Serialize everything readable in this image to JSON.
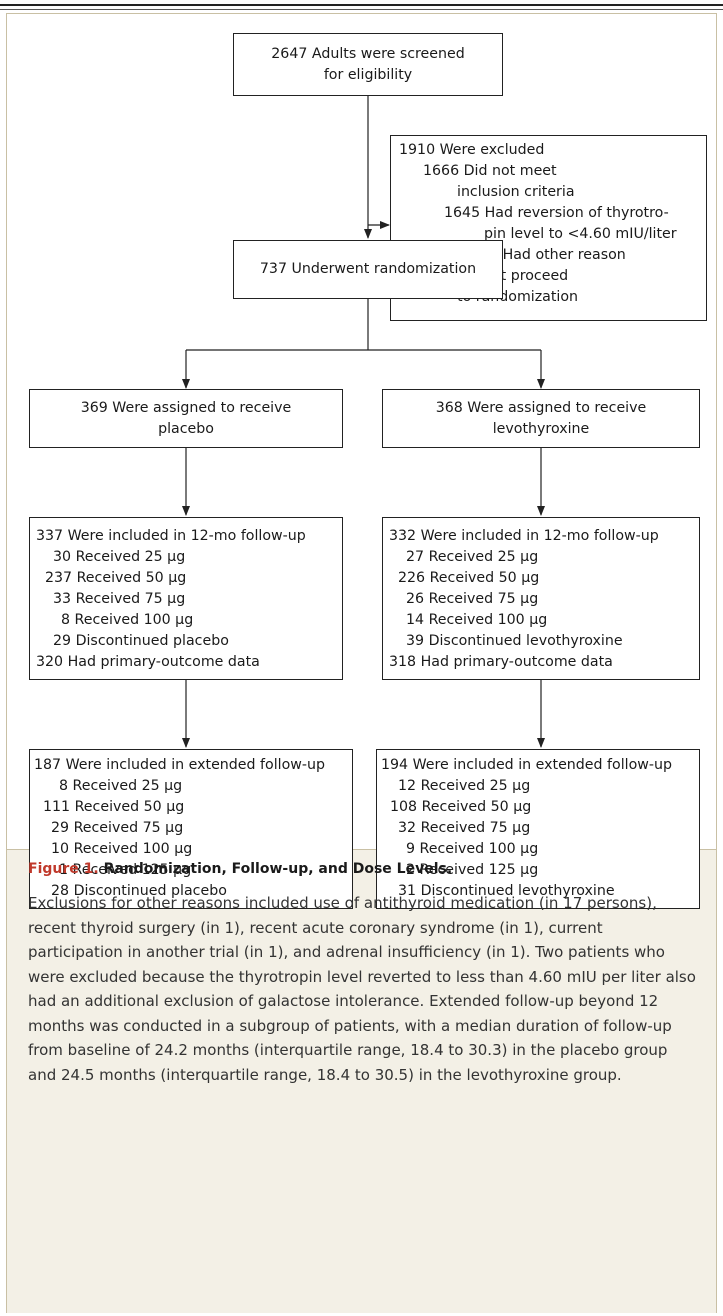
{
  "screened": {
    "lines": [
      "2647 Adults were screened",
      "for eligibility"
    ]
  },
  "excluded": {
    "lines": [
      {
        "text": "1910 Were excluded",
        "indent": 0
      },
      {
        "text": "1666 Did not meet",
        "indent": 1
      },
      {
        "text": "inclusion criteria",
        "indent": 2
      },
      {
        "text": "1645 Had reversion of thyrotro-",
        "indent": 3
      },
      {
        "text": "pin level to <4.60 mIU/liter",
        "indent": 4
      },
      {
        "text": "21 Had other reason",
        "indent": 5
      },
      {
        "text": "244 Did not proceed",
        "indent": 1
      },
      {
        "text": "to randomization",
        "indent": 2
      }
    ]
  },
  "randomization": {
    "label": "737 Underwent randomization"
  },
  "placebo_assigned": {
    "lines": [
      "369 Were assigned to receive",
      "placebo"
    ]
  },
  "levo_assigned": {
    "lines": [
      "368 Were assigned to receive",
      "levothyroxine"
    ]
  },
  "placebo_12mo": {
    "lines": [
      {
        "text": "337 Were included in 12-mo follow-up",
        "indent": 0
      },
      {
        "text": "30 Received 25 µg",
        "indent": 1
      },
      {
        "text": "237 Received 50 µg",
        "indent": 2
      },
      {
        "text": "33 Received 75 µg",
        "indent": 1
      },
      {
        "text": "8 Received 100 µg",
        "indent": 3
      },
      {
        "text": "29 Discontinued placebo",
        "indent": 1
      },
      {
        "text": "320 Had primary-outcome data",
        "indent": 0
      }
    ]
  },
  "levo_12mo": {
    "lines": [
      {
        "text": "332 Were included in 12-mo follow-up",
        "indent": 0
      },
      {
        "text": "27 Received 25 µg",
        "indent": 1
      },
      {
        "text": "226 Received 50 µg",
        "indent": 2
      },
      {
        "text": "26 Received 75 µg",
        "indent": 1
      },
      {
        "text": "14 Received 100 µg",
        "indent": 1
      },
      {
        "text": "39 Discontinued levothyroxine",
        "indent": 1
      },
      {
        "text": "318 Had primary-outcome data",
        "indent": 0
      }
    ]
  },
  "placebo_ext": {
    "lines": [
      {
        "text": "187 Were included in extended follow-up",
        "indent": 0
      },
      {
        "text": "8 Received 25 µg",
        "indent": 3
      },
      {
        "text": "111 Received 50 µg",
        "indent": 2
      },
      {
        "text": "29 Received 75 µg",
        "indent": 1
      },
      {
        "text": "10 Received 100 µg",
        "indent": 1
      },
      {
        "text": "1 Received 125 µg",
        "indent": 3
      },
      {
        "text": "28 Discontinued placebo",
        "indent": 1
      }
    ]
  },
  "levo_ext": {
    "lines": [
      {
        "text": "194 Were included in extended follow-up",
        "indent": 0
      },
      {
        "text": "12 Received 25 µg",
        "indent": 1
      },
      {
        "text": "108 Received 50 µg",
        "indent": 2
      },
      {
        "text": "32 Received 75 µg",
        "indent": 1
      },
      {
        "text": "9 Received 100 µg",
        "indent": 3
      },
      {
        "text": "2 Received 125 µg",
        "indent": 3
      },
      {
        "text": "31 Discontinued levothyroxine",
        "indent": 1
      }
    ]
  },
  "caption": {
    "figure_label": "Figure 1.",
    "title": "Randomization, Follow-up, and Dose Levels.",
    "body": "Exclusions for other reasons included use of antithyroid medication (in 17 persons), recent thyroid surgery (in 1), recent acute coronary syndrome (in 1), current participation in another trial (in 1), and adrenal insufficiency (in 1). Two patients who were excluded because the thyrotropin level reverted to less than 4.60 mIU per liter also had an additional exclusion of galactose intolerance. Extended follow-up beyond 12 months was conducted in a subgroup of patients, with a median duration of follow-up from baseline of 24.2 months (interquartile range, 18.4 to 30.3) in the placebo group and 24.5 months (interquartile range, 18.4 to 30.5) in the levothyroxine group."
  }
}
